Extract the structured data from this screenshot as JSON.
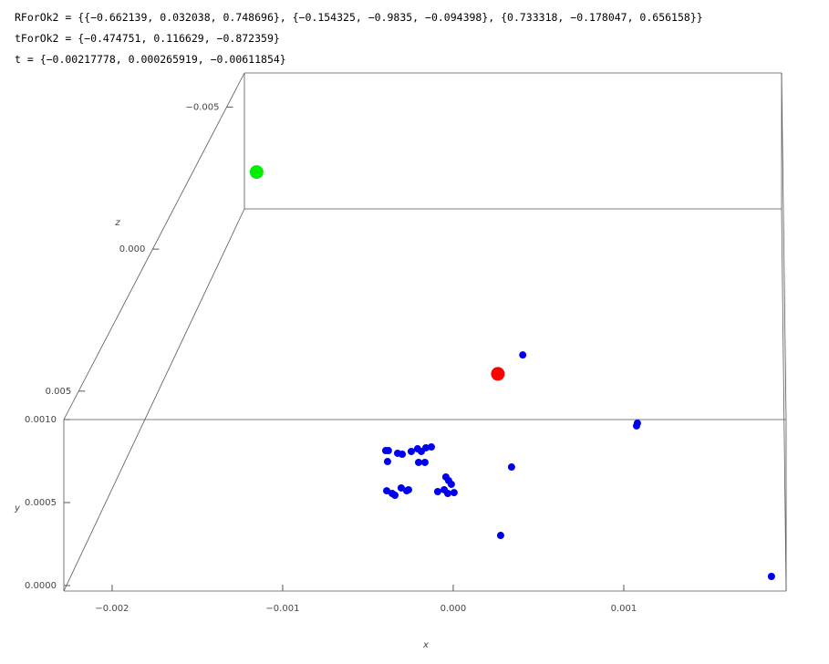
{
  "notebook": {
    "lines": [
      "RForOk2 = {{−0.662139, 0.032038, 0.748696}, {−0.154325, −0.9835, −0.094398}, {0.733318, −0.178047, 0.656158}}",
      "tForOk2 = {−0.474751, 0.116629, −0.872359}",
      "t = {−0.00217778, 0.000265919, −0.00611854}"
    ]
  },
  "chart_data": {
    "type": "scatter3d",
    "xlabel": "x",
    "ylabel": "y",
    "zlabel": "z",
    "xlim": [
      -0.002283,
      0.001952
    ],
    "ylim": [
      -3.3e-05,
      0.001
    ],
    "zlim": [
      -0.0062,
      0.006
    ],
    "xticks": [
      {
        "value": -0.002,
        "label": "−0.002"
      },
      {
        "value": -0.001,
        "label": "−0.001"
      },
      {
        "value": 0,
        "label": "0.000"
      },
      {
        "value": 0.001,
        "label": "0.001"
      }
    ],
    "yticks": [
      {
        "value": 0,
        "label": "0.0000"
      },
      {
        "value": 0.0005,
        "label": "0.0005"
      },
      {
        "value": 0.001,
        "label": "0.0010"
      }
    ],
    "zticks": [
      {
        "value": -0.005,
        "label": "−0.005"
      },
      {
        "value": 0,
        "label": "0.000"
      },
      {
        "value": 0.005,
        "label": "0.005"
      }
    ],
    "series": [
      {
        "color": "#0000ee",
        "size": 4,
        "x": [
          -0.000396,
          -0.00038,
          -0.000326,
          -0.000299,
          -0.000246,
          -0.000209,
          -0.000187,
          -0.00016,
          -0.000128,
          -0.000385,
          -0.000203,
          -0.000166,
          -0.00039,
          -0.000358,
          -0.000342,
          -0.000305,
          -0.000273,
          -0.000262,
          -4.3e-05,
          -2.7e-05,
          -1.1e-05,
          -9.1e-05,
          -5.3e-05,
          -3.2e-05,
          5e-06,
          0.000342,
          0.000278,
          0.00108,
          0.001075,
          0.001866,
          0.0002
        ],
        "y": [
          0.000813,
          0.000813,
          0.000797,
          0.000791,
          0.000808,
          0.000824,
          0.000808,
          0.00083,
          0.000835,
          0.000747,
          0.000742,
          0.000742,
          0.000571,
          0.000555,
          0.000544,
          0.000588,
          0.000571,
          0.000577,
          0.000654,
          0.000632,
          0.00061,
          0.000566,
          0.000577,
          0.000555,
          0.00056,
          0.000714,
          0.000302,
          0.000978,
          0.000962,
          5.5e-05,
          0.00029
        ],
        "z": [
          0.006,
          0.006,
          0.006,
          0.006,
          0.006,
          0.006,
          0.006,
          0.006,
          0.006,
          0.006,
          0.006,
          0.006,
          0.006,
          0.006,
          0.006,
          0.006,
          0.006,
          0.006,
          0.006,
          0.006,
          0.006,
          0.006,
          0.006,
          0.006,
          0.006,
          0.006,
          0.006,
          0.006,
          0.006,
          0.006,
          0
        ]
      },
      {
        "color": "#ff0000",
        "size": 7.5,
        "x": [
          3.3e-05
        ],
        "y": [
          0.000163
        ],
        "z": [
          0
        ]
      },
      {
        "color": "#00ee00",
        "size": 7.5,
        "x": [
          -0.00217778
        ],
        "y": [
          0.000265919
        ],
        "z": [
          -0.00611854
        ]
      }
    ]
  }
}
